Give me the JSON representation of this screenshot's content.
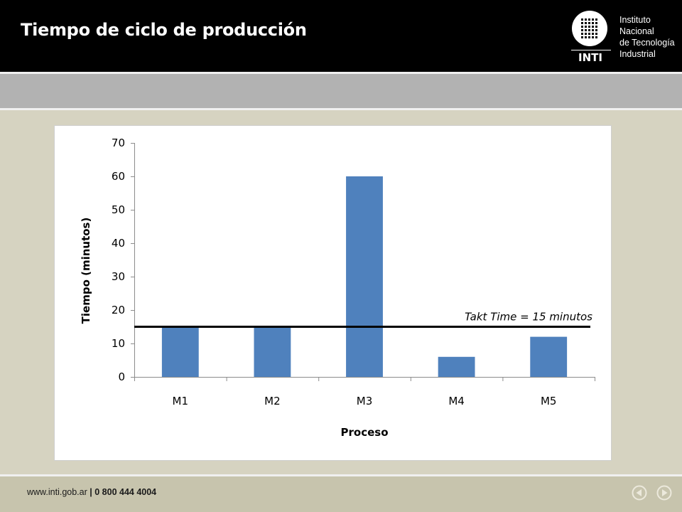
{
  "header": {
    "title": "Tiempo de ciclo de producción",
    "logo": {
      "acronym": "INTI",
      "lines": [
        "Instituto",
        "Nacional",
        "de Tecnología",
        "Industrial"
      ]
    }
  },
  "footer": {
    "website": "www.inti.gob.ar",
    "separator": "|",
    "phone": "0 800 444 4004",
    "prev_icon": "arrow-left-circle-icon",
    "next_icon": "arrow-right-circle-icon"
  },
  "colors": {
    "bar": "#4f81bd",
    "takt_line": "#000000",
    "background": "#d6d3c1"
  },
  "chart_data": {
    "type": "bar",
    "categories": [
      "M1",
      "M2",
      "M3",
      "M4",
      "M5"
    ],
    "values": [
      15,
      15,
      60,
      6,
      12
    ],
    "xlabel": "Proceso",
    "ylabel": "Tiempo (minutos)",
    "ylim": [
      0,
      70
    ],
    "yticks": [
      0,
      10,
      20,
      30,
      40,
      50,
      60,
      70
    ],
    "grid": false,
    "reference_line": {
      "value": 15,
      "label": "Takt Time = 15 minutos"
    }
  }
}
